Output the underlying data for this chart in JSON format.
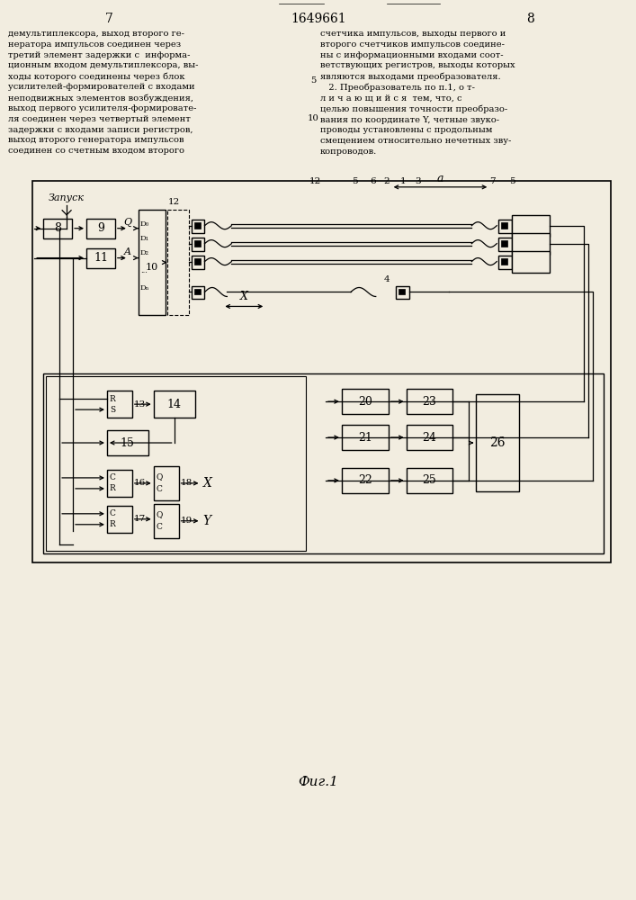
{
  "title": "1649661",
  "page_left": "7",
  "page_right": "8",
  "fig_label": "Фиг.1",
  "bg_color": "#f2ede0",
  "text_left": "демультиплексора, выход второго ге-\nнератора импульсов соединен через\nтретий элемент задержки с  информа-\nционным входом демультиплексора, вы-\nходы которого соединены через блок\nусилителей-формирователей с входами\nнеподвижных элементов возбуждения,\nвыход первого усилителя-формировате-\nля соединен через четвертый элемент\nзадержки с входами записи регистров,\nвыход второго генератора импульсов\nсоединен со счетным входом второго",
  "text_right": "счетчика импульсов, выходы первого и\nвторого счетчиков импульсов соедине-\nны с информационными входами соот-\nветствующих регистров, выходы которых\nявляются выходами преобразователя.\n   2. Преобразователь по п.1, о т-\nл и ч а ю щ и й с я  тем, что, с\nцелью повышения точности преобразо-\nвания по координате Y, четные звуко-\nпроводы установлены с продольным\nсмещением относительно нечетных зву-\nкопроводов."
}
